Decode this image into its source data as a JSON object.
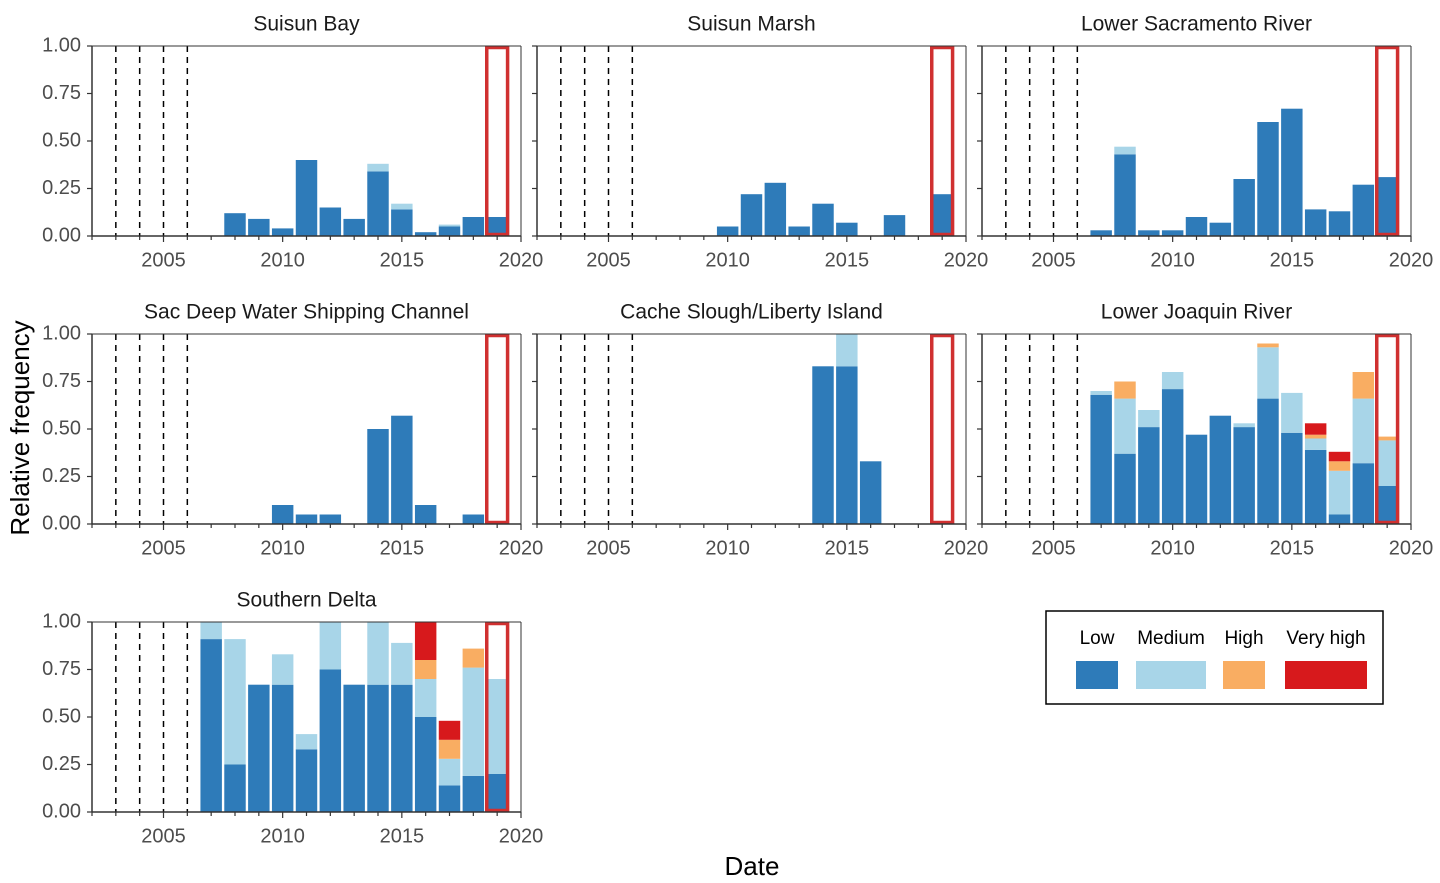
{
  "chart_data": {
    "type": "bar",
    "stacked": true,
    "layout": "facet-grid",
    "xlabel": "Date",
    "ylabel": "Relative frequency",
    "xlim": [
      2002,
      2020
    ],
    "ylim": [
      0,
      1
    ],
    "x_ticks": [
      "2005",
      "2010",
      "2015",
      "2020"
    ],
    "x_tick_values": [
      2005,
      2010,
      2015,
      2020
    ],
    "y_ticks": [
      "0.00",
      "0.25",
      "0.50",
      "0.75",
      "1.00"
    ],
    "y_tick_values": [
      0,
      0.25,
      0.5,
      0.75,
      1
    ],
    "reference_lines_x": [
      2003,
      2004,
      2005,
      2006
    ],
    "highlight_year": 2019,
    "highlight_color": "#d03030",
    "legend": {
      "position": "bottom-right",
      "entries": [
        {
          "label": "Low",
          "color": "#2e7bb9"
        },
        {
          "label": "Medium",
          "color": "#a8d5e8"
        },
        {
          "label": "High",
          "color": "#f9ad62"
        },
        {
          "label": "Very high",
          "color": "#d7191c"
        }
      ]
    },
    "panels": [
      {
        "title": "Suisun Bay",
        "show_y_ticks": true,
        "bars": [
          {
            "year": 2008,
            "values": [
              0.12,
              0,
              0,
              0
            ]
          },
          {
            "year": 2009,
            "values": [
              0.09,
              0,
              0,
              0
            ]
          },
          {
            "year": 2010,
            "values": [
              0.04,
              0,
              0,
              0
            ]
          },
          {
            "year": 2011,
            "values": [
              0.4,
              0,
              0,
              0
            ]
          },
          {
            "year": 2012,
            "values": [
              0.15,
              0,
              0,
              0
            ]
          },
          {
            "year": 2013,
            "values": [
              0.09,
              0,
              0,
              0
            ]
          },
          {
            "year": 2014,
            "values": [
              0.34,
              0.04,
              0,
              0
            ]
          },
          {
            "year": 2015,
            "values": [
              0.14,
              0.03,
              0,
              0
            ]
          },
          {
            "year": 2016,
            "values": [
              0.02,
              0,
              0,
              0
            ]
          },
          {
            "year": 2017,
            "values": [
              0.05,
              0.01,
              0,
              0
            ]
          },
          {
            "year": 2018,
            "values": [
              0.1,
              0,
              0,
              0
            ]
          },
          {
            "year": 2019,
            "values": [
              0.1,
              0,
              0,
              0
            ]
          }
        ]
      },
      {
        "title": "Suisun Marsh",
        "show_y_ticks": false,
        "bars": [
          {
            "year": 2010,
            "values": [
              0.05,
              0,
              0,
              0
            ]
          },
          {
            "year": 2011,
            "values": [
              0.22,
              0,
              0,
              0
            ]
          },
          {
            "year": 2012,
            "values": [
              0.28,
              0,
              0,
              0
            ]
          },
          {
            "year": 2013,
            "values": [
              0.05,
              0,
              0,
              0
            ]
          },
          {
            "year": 2014,
            "values": [
              0.17,
              0,
              0,
              0
            ]
          },
          {
            "year": 2015,
            "values": [
              0.07,
              0,
              0,
              0
            ]
          },
          {
            "year": 2017,
            "values": [
              0.11,
              0,
              0,
              0
            ]
          },
          {
            "year": 2019,
            "values": [
              0.22,
              0,
              0,
              0
            ]
          }
        ]
      },
      {
        "title": "Lower Sacramento River",
        "show_y_ticks": false,
        "bars": [
          {
            "year": 2007,
            "values": [
              0.03,
              0,
              0,
              0
            ]
          },
          {
            "year": 2008,
            "values": [
              0.43,
              0.04,
              0,
              0
            ]
          },
          {
            "year": 2009,
            "values": [
              0.03,
              0,
              0,
              0
            ]
          },
          {
            "year": 2010,
            "values": [
              0.03,
              0,
              0,
              0
            ]
          },
          {
            "year": 2011,
            "values": [
              0.1,
              0,
              0,
              0
            ]
          },
          {
            "year": 2012,
            "values": [
              0.07,
              0,
              0,
              0
            ]
          },
          {
            "year": 2013,
            "values": [
              0.3,
              0,
              0,
              0
            ]
          },
          {
            "year": 2014,
            "values": [
              0.6,
              0,
              0,
              0
            ]
          },
          {
            "year": 2015,
            "values": [
              0.67,
              0,
              0,
              0
            ]
          },
          {
            "year": 2016,
            "values": [
              0.14,
              0,
              0,
              0
            ]
          },
          {
            "year": 2017,
            "values": [
              0.13,
              0,
              0,
              0
            ]
          },
          {
            "year": 2018,
            "values": [
              0.27,
              0,
              0,
              0
            ]
          },
          {
            "year": 2019,
            "values": [
              0.31,
              0,
              0,
              0
            ]
          }
        ]
      },
      {
        "title": "Sac Deep Water Shipping Channel",
        "show_y_ticks": true,
        "bars": [
          {
            "year": 2010,
            "values": [
              0.1,
              0,
              0,
              0
            ]
          },
          {
            "year": 2011,
            "values": [
              0.05,
              0,
              0,
              0
            ]
          },
          {
            "year": 2012,
            "values": [
              0.05,
              0,
              0,
              0
            ]
          },
          {
            "year": 2014,
            "values": [
              0.5,
              0,
              0,
              0
            ]
          },
          {
            "year": 2015,
            "values": [
              0.57,
              0,
              0,
              0
            ]
          },
          {
            "year": 2016,
            "values": [
              0.1,
              0,
              0,
              0
            ]
          },
          {
            "year": 2018,
            "values": [
              0.05,
              0,
              0,
              0
            ]
          }
        ]
      },
      {
        "title": "Cache Slough/Liberty Island",
        "show_y_ticks": false,
        "bars": [
          {
            "year": 2014,
            "values": [
              0.83,
              0,
              0,
              0
            ]
          },
          {
            "year": 2015,
            "values": [
              0.83,
              0.17,
              0,
              0
            ]
          },
          {
            "year": 2016,
            "values": [
              0.33,
              0,
              0,
              0
            ]
          }
        ]
      },
      {
        "title": "Lower Joaquin River",
        "show_y_ticks": false,
        "bars": [
          {
            "year": 2007,
            "values": [
              0.68,
              0.02,
              0,
              0
            ]
          },
          {
            "year": 2008,
            "values": [
              0.37,
              0.29,
              0.09,
              0
            ]
          },
          {
            "year": 2009,
            "values": [
              0.51,
              0.09,
              0,
              0
            ]
          },
          {
            "year": 2010,
            "values": [
              0.71,
              0.09,
              0,
              0
            ]
          },
          {
            "year": 2011,
            "values": [
              0.47,
              0,
              0,
              0
            ]
          },
          {
            "year": 2012,
            "values": [
              0.57,
              0,
              0,
              0
            ]
          },
          {
            "year": 2013,
            "values": [
              0.51,
              0.02,
              0,
              0
            ]
          },
          {
            "year": 2014,
            "values": [
              0.66,
              0.27,
              0.02,
              0
            ]
          },
          {
            "year": 2015,
            "values": [
              0.48,
              0.21,
              0,
              0
            ]
          },
          {
            "year": 2016,
            "values": [
              0.39,
              0.06,
              0.02,
              0.06
            ]
          },
          {
            "year": 2017,
            "values": [
              0.05,
              0.23,
              0.05,
              0.05
            ]
          },
          {
            "year": 2018,
            "values": [
              0.32,
              0.34,
              0.14,
              0
            ]
          },
          {
            "year": 2019,
            "values": [
              0.2,
              0.24,
              0.02,
              0
            ]
          }
        ]
      },
      {
        "title": "Southern Delta",
        "show_y_ticks": true,
        "bars": [
          {
            "year": 2007,
            "values": [
              0.91,
              0.09,
              0,
              0
            ]
          },
          {
            "year": 2008,
            "values": [
              0.25,
              0.66,
              0,
              0
            ]
          },
          {
            "year": 2009,
            "values": [
              0.67,
              0,
              0,
              0
            ]
          },
          {
            "year": 2010,
            "values": [
              0.67,
              0.16,
              0,
              0
            ]
          },
          {
            "year": 2011,
            "values": [
              0.33,
              0.08,
              0,
              0
            ]
          },
          {
            "year": 2012,
            "values": [
              0.75,
              0.25,
              0,
              0
            ]
          },
          {
            "year": 2013,
            "values": [
              0.67,
              0,
              0,
              0
            ]
          },
          {
            "year": 2014,
            "values": [
              0.67,
              0.33,
              0,
              0
            ]
          },
          {
            "year": 2015,
            "values": [
              0.67,
              0.22,
              0,
              0
            ]
          },
          {
            "year": 2016,
            "values": [
              0.5,
              0.2,
              0.1,
              0.2
            ]
          },
          {
            "year": 2017,
            "values": [
              0.14,
              0.14,
              0.1,
              0.1
            ]
          },
          {
            "year": 2018,
            "values": [
              0.19,
              0.57,
              0.1,
              0
            ]
          },
          {
            "year": 2019,
            "values": [
              0.2,
              0.5,
              0,
              0
            ]
          }
        ]
      }
    ]
  }
}
